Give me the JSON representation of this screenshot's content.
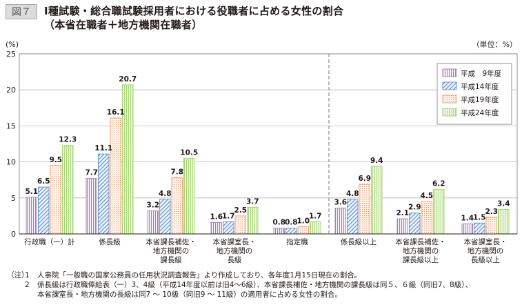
{
  "figure_label": "図７",
  "title_line1": "Ⅰ種試験・総合職試験採用者における役職者に占める女性の割合",
  "title_line2": "（本省在職者＋地方機関在職者）",
  "chart_data": {
    "type": "bar",
    "y_unit_label": "(%)",
    "unit_note": "（単位：%）",
    "ylim": [
      0,
      25
    ],
    "y_ticks": [
      "0",
      "5",
      "10",
      "15",
      "20",
      "25"
    ],
    "grid": true,
    "legend_position": "top-right",
    "categories": [
      [
        "行政職（一）計"
      ],
      [
        "係長級"
      ],
      [
        "本省課長補佐・",
        "地方機関の",
        "課長級"
      ],
      [
        "本省課室長・",
        "地方機関の",
        "長級"
      ],
      [
        "指定職"
      ],
      [
        "係長級以上"
      ],
      [
        "本省課長補佐・",
        "地方機関の",
        "課長級以上"
      ],
      [
        "本省課室長・",
        "地方機関の",
        "長級以上"
      ]
    ],
    "series": [
      {
        "name": "平成　9年度",
        "color": "#a37db5",
        "values": [
          5.1,
          7.7,
          3.2,
          1.6,
          0.8,
          3.6,
          2.1,
          1.4
        ],
        "labels": [
          "5.1",
          "7.7",
          "3.2",
          "1.6",
          "0.8",
          "3.6",
          "2.1",
          "1.4"
        ]
      },
      {
        "name": "平成14年度",
        "color": "#5b8fd1",
        "values": [
          6.5,
          11.1,
          4.8,
          1.7,
          0.8,
          4.8,
          2.9,
          1.5
        ],
        "labels": [
          "6.5",
          "11.1",
          "4.8",
          "1.7",
          "0.8",
          "4.8",
          "2.9",
          "1.5"
        ]
      },
      {
        "name": "平成19年度",
        "color": "#f29a6b",
        "values": [
          9.5,
          16.1,
          7.8,
          2.5,
          1.0,
          6.9,
          4.5,
          2.3
        ],
        "labels": [
          "9.5",
          "16.1",
          "7.8",
          "2.5",
          "1.0",
          "6.9",
          "4.5",
          "2.3"
        ]
      },
      {
        "name": "平成24年度",
        "color": "#9fd36a",
        "values": [
          12.3,
          20.7,
          10.5,
          3.7,
          1.7,
          9.4,
          6.2,
          3.4
        ],
        "labels": [
          "12.3",
          "20.7",
          "10.5",
          "3.7",
          "1.7",
          "9.4",
          "6.2",
          "3.4"
        ]
      }
    ]
  },
  "notes": [
    {
      "prefix": "（注）",
      "num": "1",
      "text": "人事院「一般職の国家公務員の任用状況調査報告」より作成しており、各年度1月15日現在の割合。"
    },
    {
      "prefix": "",
      "num": "2",
      "text": "係長級は行政職俸給表（一）3、4級（平成14年度以前は旧4～6級）、本省課長補佐・地方機関の課長級は同５、６級（同旧7、8級）、"
    },
    {
      "prefix": "",
      "num": "",
      "text": "本省課室長・地方機関の長級は同7 ～ 10級（同旧9 ～ 11級）の適用者に占める女性の割合。"
    }
  ]
}
